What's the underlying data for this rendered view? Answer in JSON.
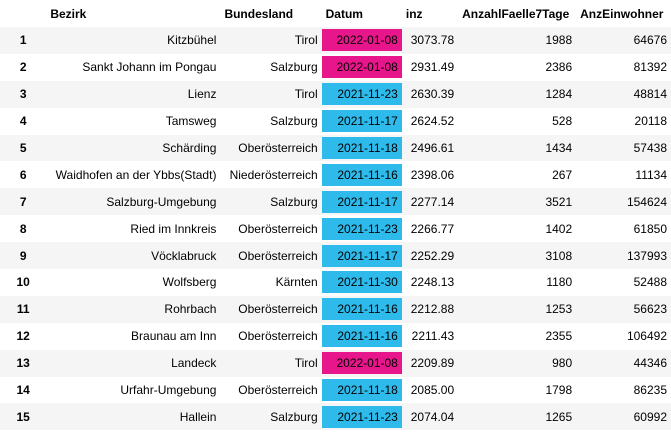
{
  "columns": [
    "Bezirk",
    "Bundesland",
    "Datum",
    "inz",
    "AnzahlFaelle7Tage",
    "AnzEinwohner"
  ],
  "highlight_colors": {
    "pink": "#e8168b",
    "blue": "#2ebaea"
  },
  "rows": [
    {
      "idx": "1",
      "bezirk": "Kitzbühel",
      "bundesland": "Tirol",
      "datum": "2022-01-08",
      "inz": "3073.78",
      "faelle": "1988",
      "einwohner": "64676",
      "mark": "pink"
    },
    {
      "idx": "2",
      "bezirk": "Sankt Johann im Pongau",
      "bundesland": "Salzburg",
      "datum": "2022-01-08",
      "inz": "2931.49",
      "faelle": "2386",
      "einwohner": "81392",
      "mark": "pink"
    },
    {
      "idx": "3",
      "bezirk": "Lienz",
      "bundesland": "Tirol",
      "datum": "2021-11-23",
      "inz": "2630.39",
      "faelle": "1284",
      "einwohner": "48814",
      "mark": "blue"
    },
    {
      "idx": "4",
      "bezirk": "Tamsweg",
      "bundesland": "Salzburg",
      "datum": "2021-11-17",
      "inz": "2624.52",
      "faelle": "528",
      "einwohner": "20118",
      "mark": "blue"
    },
    {
      "idx": "5",
      "bezirk": "Schärding",
      "bundesland": "Oberösterreich",
      "datum": "2021-11-18",
      "inz": "2496.61",
      "faelle": "1434",
      "einwohner": "57438",
      "mark": "blue"
    },
    {
      "idx": "6",
      "bezirk": "Waidhofen an der Ybbs(Stadt)",
      "bundesland": "Niederösterreich",
      "datum": "2021-11-16",
      "inz": "2398.06",
      "faelle": "267",
      "einwohner": "11134",
      "mark": "blue"
    },
    {
      "idx": "7",
      "bezirk": "Salzburg-Umgebung",
      "bundesland": "Salzburg",
      "datum": "2021-11-17",
      "inz": "2277.14",
      "faelle": "3521",
      "einwohner": "154624",
      "mark": "blue"
    },
    {
      "idx": "8",
      "bezirk": "Ried im Innkreis",
      "bundesland": "Oberösterreich",
      "datum": "2021-11-23",
      "inz": "2266.77",
      "faelle": "1402",
      "einwohner": "61850",
      "mark": "blue"
    },
    {
      "idx": "9",
      "bezirk": "Vöcklabruck",
      "bundesland": "Oberösterreich",
      "datum": "2021-11-17",
      "inz": "2252.29",
      "faelle": "3108",
      "einwohner": "137993",
      "mark": "blue"
    },
    {
      "idx": "10",
      "bezirk": "Wolfsberg",
      "bundesland": "Kärnten",
      "datum": "2021-11-30",
      "inz": "2248.13",
      "faelle": "1180",
      "einwohner": "52488",
      "mark": "blue"
    },
    {
      "idx": "11",
      "bezirk": "Rohrbach",
      "bundesland": "Oberösterreich",
      "datum": "2021-11-16",
      "inz": "2212.88",
      "faelle": "1253",
      "einwohner": "56623",
      "mark": "blue"
    },
    {
      "idx": "12",
      "bezirk": "Braunau am Inn",
      "bundesland": "Oberösterreich",
      "datum": "2021-11-16",
      "inz": "2211.43",
      "faelle": "2355",
      "einwohner": "106492",
      "mark": "blue"
    },
    {
      "idx": "13",
      "bezirk": "Landeck",
      "bundesland": "Tirol",
      "datum": "2022-01-08",
      "inz": "2209.89",
      "faelle": "980",
      "einwohner": "44346",
      "mark": "pink"
    },
    {
      "idx": "14",
      "bezirk": "Urfahr-Umgebung",
      "bundesland": "Oberösterreich",
      "datum": "2021-11-18",
      "inz": "2085.00",
      "faelle": "1798",
      "einwohner": "86235",
      "mark": "blue"
    },
    {
      "idx": "15",
      "bezirk": "Hallein",
      "bundesland": "Salzburg",
      "datum": "2021-11-23",
      "inz": "2074.04",
      "faelle": "1265",
      "einwohner": "60992",
      "mark": "blue"
    }
  ]
}
